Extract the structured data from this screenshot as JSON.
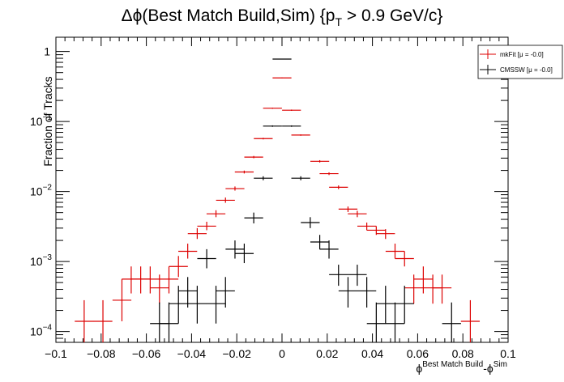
{
  "chart_data": {
    "type": "scatter",
    "title_main": "Δϕ(Best Match Build,Sim) {p",
    "title_sub": "T",
    "title_rest": " > 0.9 GeV/c}",
    "ylabel": "Fraction of Tracks",
    "xlabel_phi1": "ϕ",
    "xlabel_sup1": "Best Match Build",
    "xlabel_mid": "-ϕ",
    "xlabel_sup2": "Sim",
    "log_y": true,
    "xlim": [
      -0.1,
      0.1
    ],
    "ylim": [
      7e-05,
      1.6
    ],
    "bin_width": 0.00833,
    "x_ticks": [
      "−0.1",
      "−0.08",
      "−0.06",
      "−0.04",
      "−0.02",
      "0",
      "0.02",
      "0.04",
      "0.06",
      "0.08",
      "0.1"
    ],
    "y_ticks": [
      {
        "base": "1",
        "exp": ""
      },
      {
        "base": "10",
        "exp": "−1"
      },
      {
        "base": "10",
        "exp": "−2"
      },
      {
        "base": "10",
        "exp": "−3"
      },
      {
        "base": "10",
        "exp": "−4"
      }
    ],
    "legend_position": "top-right",
    "series": [
      {
        "name": "mkFit",
        "legend_label": "mkFit  [μ = -0.0]",
        "color": "#dd0000",
        "points": [
          {
            "x": -0.0875,
            "y": 0.00014,
            "lo": 7e-05,
            "hi": 0.00028
          },
          {
            "x": -0.0792,
            "y": 0.00014,
            "lo": 7e-05,
            "hi": 0.00028
          },
          {
            "x": -0.0708,
            "y": 0.00028,
            "lo": 0.00014,
            "hi": 0.00056
          },
          {
            "x": -0.0667,
            "y": 0.00056,
            "lo": 0.00035,
            "hi": 0.00085
          },
          {
            "x": -0.0625,
            "y": 0.00056,
            "lo": 0.00035,
            "hi": 0.00085
          },
          {
            "x": -0.0583,
            "y": 0.00056,
            "lo": 0.00035,
            "hi": 0.00085
          },
          {
            "x": -0.0542,
            "y": 0.00042,
            "lo": 0.00025,
            "hi": 0.00065
          },
          {
            "x": -0.05,
            "y": 0.00056,
            "lo": 0.00035,
            "hi": 0.00085
          },
          {
            "x": -0.0458,
            "y": 0.00085,
            "lo": 0.0006,
            "hi": 0.0012
          },
          {
            "x": -0.0417,
            "y": 0.0014,
            "lo": 0.0011,
            "hi": 0.0018
          },
          {
            "x": -0.0375,
            "y": 0.0025,
            "lo": 0.0021,
            "hi": 0.003
          },
          {
            "x": -0.0333,
            "y": 0.0032,
            "lo": 0.0028,
            "hi": 0.0037
          },
          {
            "x": -0.0292,
            "y": 0.0048,
            "lo": 0.0043,
            "hi": 0.0054
          },
          {
            "x": -0.025,
            "y": 0.0075,
            "lo": 0.0069,
            "hi": 0.0082
          },
          {
            "x": -0.0208,
            "y": 0.011,
            "lo": 0.0103,
            "hi": 0.0118
          },
          {
            "x": -0.0167,
            "y": 0.019,
            "lo": 0.0181,
            "hi": 0.0199
          },
          {
            "x": -0.0125,
            "y": 0.031,
            "lo": 0.0299,
            "hi": 0.0322
          },
          {
            "x": -0.0083,
            "y": 0.057,
            "lo": 0.0555,
            "hi": 0.0585
          },
          {
            "x": -0.0042,
            "y": 0.155,
            "lo": 0.152,
            "hi": 0.158
          },
          {
            "x": 0.0,
            "y": 0.42,
            "lo": 0.415,
            "hi": 0.425
          },
          {
            "x": 0.0042,
            "y": 0.145,
            "lo": 0.142,
            "hi": 0.148
          },
          {
            "x": 0.0083,
            "y": 0.064,
            "lo": 0.0625,
            "hi": 0.0655
          },
          {
            "x": 0.0167,
            "y": 0.027,
            "lo": 0.026,
            "hi": 0.028
          },
          {
            "x": 0.0208,
            "y": 0.018,
            "lo": 0.0172,
            "hi": 0.0188
          },
          {
            "x": 0.025,
            "y": 0.0115,
            "lo": 0.0108,
            "hi": 0.0122
          },
          {
            "x": 0.0292,
            "y": 0.0056,
            "lo": 0.0051,
            "hi": 0.0061
          },
          {
            "x": 0.0333,
            "y": 0.0048,
            "lo": 0.0043,
            "hi": 0.0053
          },
          {
            "x": 0.0375,
            "y": 0.0032,
            "lo": 0.0028,
            "hi": 0.0036
          },
          {
            "x": 0.0417,
            "y": 0.0028,
            "lo": 0.0024,
            "hi": 0.0032
          },
          {
            "x": 0.0458,
            "y": 0.0025,
            "lo": 0.0021,
            "hi": 0.0029
          },
          {
            "x": 0.05,
            "y": 0.0014,
            "lo": 0.0011,
            "hi": 0.0018
          },
          {
            "x": 0.0542,
            "y": 0.0011,
            "lo": 0.00085,
            "hi": 0.0014
          },
          {
            "x": 0.0583,
            "y": 0.00042,
            "lo": 0.00025,
            "hi": 0.00065
          },
          {
            "x": 0.0625,
            "y": 0.00056,
            "lo": 0.00035,
            "hi": 0.00085
          },
          {
            "x": 0.0667,
            "y": 0.00042,
            "lo": 0.00025,
            "hi": 0.00065
          },
          {
            "x": 0.0708,
            "y": 0.00042,
            "lo": 0.00025,
            "hi": 0.00065
          },
          {
            "x": 0.0833,
            "y": 0.00014,
            "lo": 7e-05,
            "hi": 0.00028
          }
        ]
      },
      {
        "name": "CMSSW",
        "legend_label": "CMSSW  [μ = -0.0]",
        "color": "#000000",
        "points": [
          {
            "x": -0.0542,
            "y": 0.00013,
            "lo": 7e-05,
            "hi": 0.00026
          },
          {
            "x": -0.05,
            "y": 0.00013,
            "lo": 7e-05,
            "hi": 0.00026
          },
          {
            "x": -0.0458,
            "y": 0.00025,
            "lo": 0.00013,
            "hi": 0.00045
          },
          {
            "x": -0.0417,
            "y": 0.00038,
            "lo": 0.00022,
            "hi": 0.0006
          },
          {
            "x": -0.0375,
            "y": 0.00025,
            "lo": 0.00013,
            "hi": 0.00045
          },
          {
            "x": -0.0333,
            "y": 0.0011,
            "lo": 0.0008,
            "hi": 0.0015
          },
          {
            "x": -0.0292,
            "y": 0.00025,
            "lo": 0.00013,
            "hi": 0.00045
          },
          {
            "x": -0.025,
            "y": 0.00038,
            "lo": 0.00022,
            "hi": 0.0006
          },
          {
            "x": -0.0208,
            "y": 0.0015,
            "lo": 0.0011,
            "hi": 0.002
          },
          {
            "x": -0.0167,
            "y": 0.0013,
            "lo": 0.00095,
            "hi": 0.0018
          },
          {
            "x": -0.0125,
            "y": 0.0042,
            "lo": 0.0035,
            "hi": 0.005
          },
          {
            "x": -0.0083,
            "y": 0.0155,
            "lo": 0.0145,
            "hi": 0.0165
          },
          {
            "x": -0.0042,
            "y": 0.086,
            "lo": 0.084,
            "hi": 0.088
          },
          {
            "x": 0.0,
            "y": 0.78,
            "lo": 0.77,
            "hi": 0.79
          },
          {
            "x": 0.0042,
            "y": 0.086,
            "lo": 0.084,
            "hi": 0.088
          },
          {
            "x": 0.0083,
            "y": 0.0155,
            "lo": 0.0145,
            "hi": 0.0165
          },
          {
            "x": 0.0125,
            "y": 0.0036,
            "lo": 0.003,
            "hi": 0.0043
          },
          {
            "x": 0.0167,
            "y": 0.0019,
            "lo": 0.0015,
            "hi": 0.0024
          },
          {
            "x": 0.0208,
            "y": 0.0015,
            "lo": 0.0011,
            "hi": 0.002
          },
          {
            "x": 0.025,
            "y": 0.00065,
            "lo": 0.00045,
            "hi": 0.0009
          },
          {
            "x": 0.0292,
            "y": 0.00038,
            "lo": 0.00022,
            "hi": 0.0006
          },
          {
            "x": 0.0333,
            "y": 0.00065,
            "lo": 0.00045,
            "hi": 0.0009
          },
          {
            "x": 0.0375,
            "y": 0.00038,
            "lo": 0.00022,
            "hi": 0.0006
          },
          {
            "x": 0.0417,
            "y": 0.00013,
            "lo": 7e-05,
            "hi": 0.00026
          },
          {
            "x": 0.0458,
            "y": 0.00025,
            "lo": 0.00013,
            "hi": 0.00045
          },
          {
            "x": 0.05,
            "y": 0.00013,
            "lo": 7e-05,
            "hi": 0.00026
          },
          {
            "x": 0.0542,
            "y": 0.00025,
            "lo": 0.00013,
            "hi": 0.00045
          },
          {
            "x": 0.075,
            "y": 0.00013,
            "lo": 7e-05,
            "hi": 0.00026
          }
        ]
      }
    ]
  }
}
